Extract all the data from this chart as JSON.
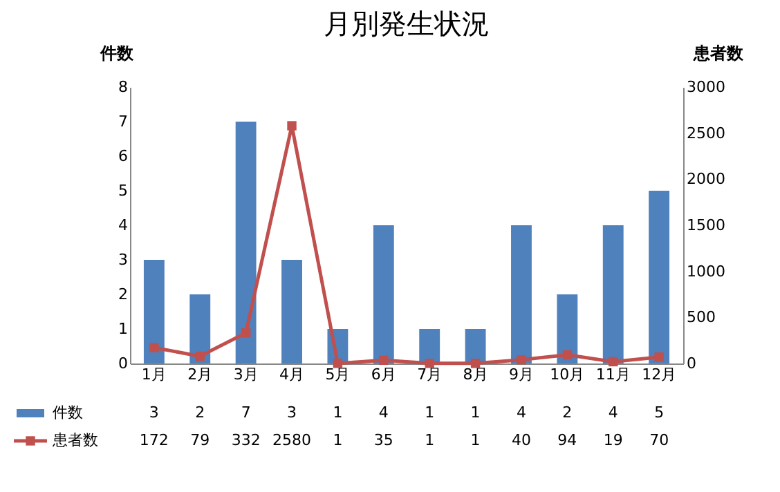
{
  "chart_data": {
    "type": "bar",
    "title": "月別発生状況",
    "ylabel": "件数",
    "y2label": "患者数",
    "categories": [
      "1月",
      "2月",
      "3月",
      "4月",
      "5月",
      "6月",
      "7月",
      "8月",
      "9月",
      "10月",
      "11月",
      "12月"
    ],
    "series": [
      {
        "name": "件数",
        "color": "#4f81bd",
        "values": [
          3,
          2,
          7,
          3,
          1,
          4,
          1,
          1,
          4,
          2,
          4,
          5
        ]
      },
      {
        "name": "患者数",
        "type": "line",
        "axis": "y2",
        "color": "#c0504d",
        "marker": "square",
        "line_style": "solid",
        "values": [
          172,
          79,
          332,
          2580,
          1,
          35,
          1,
          1,
          40,
          94,
          19,
          70
        ]
      }
    ],
    "ylim": [
      0,
      8
    ],
    "yticks": [
      0,
      1,
      2,
      3,
      4,
      5,
      6,
      7,
      8
    ],
    "y2lim": [
      0,
      3000
    ],
    "y2ticks": [
      0,
      500,
      1000,
      1500,
      2000,
      2500,
      3000
    ],
    "data_labels": true,
    "legend": "bottom",
    "grid": false
  }
}
